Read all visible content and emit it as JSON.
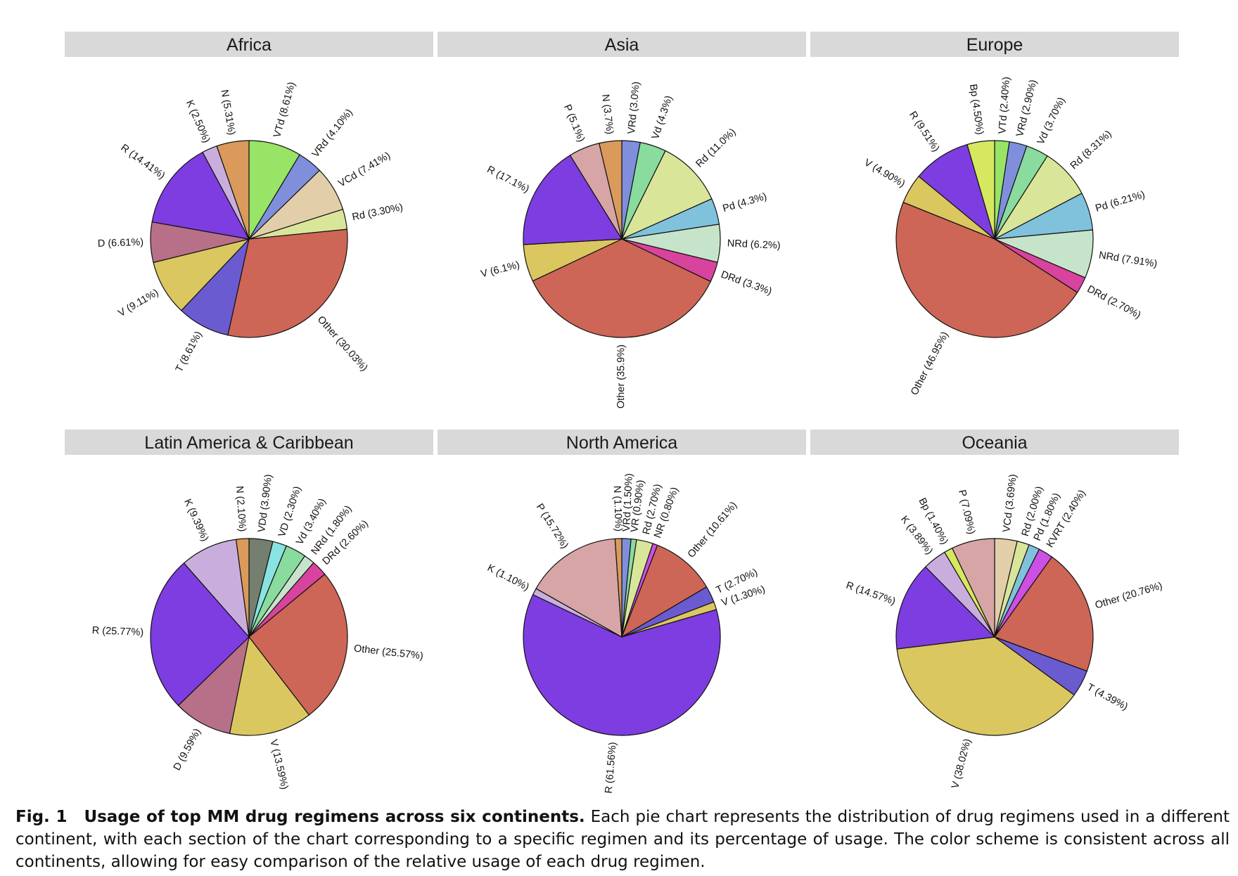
{
  "colors": {
    "A": "#cd6656",
    "B": "#7e3de0",
    "C": "#dac760",
    "D": "#6b5bd1",
    "E": "#b87088",
    "F": "#d7a5a6",
    "G": "#c9aedd",
    "H": "#d99a5c",
    "I": "#98e466",
    "J": "#7f8fdc",
    "K": "#e2cfaa",
    "L": "#d9e69a",
    "M": "#8adb9e",
    "N": "#80c2dc",
    "O": "#c6e4c9",
    "P": "#d8439e",
    "Q": "#d6e860",
    "R": "#747f6f",
    "S": "#88e4e0",
    "T": "#cd4fe4",
    "strip": "#d9d9d9",
    "outline": "#111111"
  },
  "chart_data": [
    {
      "type": "pie",
      "title": "Africa",
      "slices": [
        {
          "label": "VTd (8.61%)",
          "value": 8.61,
          "color": "I"
        },
        {
          "label": "VRd (4.10%)",
          "value": 4.1,
          "color": "J"
        },
        {
          "label": "VCd (7.41%)",
          "value": 7.41,
          "color": "K"
        },
        {
          "label": "Rd (3.30%)",
          "value": 3.3,
          "color": "L"
        },
        {
          "label": "Other (30.03%)",
          "value": 30.03,
          "color": "A"
        },
        {
          "label": "T (8.61%)",
          "value": 8.61,
          "color": "D"
        },
        {
          "label": "V (9.11%)",
          "value": 9.11,
          "color": "C"
        },
        {
          "label": "D (6.61%)",
          "value": 6.61,
          "color": "E"
        },
        {
          "label": "R (14.41%)",
          "value": 14.41,
          "color": "B"
        },
        {
          "label": "K (2.50%)",
          "value": 2.5,
          "color": "G"
        },
        {
          "label": "N (5.31%)",
          "value": 5.31,
          "color": "H"
        }
      ]
    },
    {
      "type": "pie",
      "title": "Asia",
      "slices": [
        {
          "label": "VRd (3.0%)",
          "value": 3.0,
          "color": "J"
        },
        {
          "label": "Vd (4.3%)",
          "value": 4.3,
          "color": "M"
        },
        {
          "label": "Rd (11.0%)",
          "value": 11.0,
          "color": "L"
        },
        {
          "label": "Pd (4.3%)",
          "value": 4.3,
          "color": "N"
        },
        {
          "label": "NRd (6.2%)",
          "value": 6.2,
          "color": "O"
        },
        {
          "label": "DRd (3.3%)",
          "value": 3.3,
          "color": "P"
        },
        {
          "label": "Other (35.9%)",
          "value": 35.9,
          "color": "A"
        },
        {
          "label": "V (6.1%)",
          "value": 6.1,
          "color": "C"
        },
        {
          "label": "R (17.1%)",
          "value": 17.1,
          "color": "B"
        },
        {
          "label": "P (5.1%)",
          "value": 5.1,
          "color": "F"
        },
        {
          "label": "N (3.7%)",
          "value": 3.7,
          "color": "H"
        }
      ]
    },
    {
      "type": "pie",
      "title": "Europe",
      "slices": [
        {
          "label": "VTd (2.40%)",
          "value": 2.4,
          "color": "I"
        },
        {
          "label": "VRd (2.90%)",
          "value": 2.9,
          "color": "J"
        },
        {
          "label": "Vd (3.70%)",
          "value": 3.7,
          "color": "M"
        },
        {
          "label": "Rd (8.31%)",
          "value": 8.31,
          "color": "L"
        },
        {
          "label": "Pd (6.21%)",
          "value": 6.21,
          "color": "N"
        },
        {
          "label": "NRd (7.91%)",
          "value": 7.91,
          "color": "O"
        },
        {
          "label": "DRd (2.70%)",
          "value": 2.7,
          "color": "P"
        },
        {
          "label": "Other (46.95%)",
          "value": 46.95,
          "color": "A"
        },
        {
          "label": "V (4.90%)",
          "value": 4.9,
          "color": "C"
        },
        {
          "label": "R (9.51%)",
          "value": 9.51,
          "color": "B"
        },
        {
          "label": "Bp (4.50%)",
          "value": 4.5,
          "color": "Q"
        }
      ]
    },
    {
      "type": "pie",
      "title": "Latin America & Caribbean",
      "slices": [
        {
          "label": "VDd (3.90%)",
          "value": 3.9,
          "color": "R"
        },
        {
          "label": "VD (2.30%)",
          "value": 2.3,
          "color": "S"
        },
        {
          "label": "Vd (3.40%)",
          "value": 3.4,
          "color": "M"
        },
        {
          "label": "NRd (1.80%)",
          "value": 1.8,
          "color": "O"
        },
        {
          "label": "DRd (2.60%)",
          "value": 2.6,
          "color": "P"
        },
        {
          "label": "Other (25.57%)",
          "value": 25.57,
          "color": "A"
        },
        {
          "label": "V (13.59%)",
          "value": 13.59,
          "color": "C"
        },
        {
          "label": "D (9.59%)",
          "value": 9.59,
          "color": "E"
        },
        {
          "label": "R (25.77%)",
          "value": 25.77,
          "color": "B"
        },
        {
          "label": "K (9.39%)",
          "value": 9.39,
          "color": "G"
        },
        {
          "label": "N (2.10%)",
          "value": 2.1,
          "color": "H"
        }
      ]
    },
    {
      "type": "pie",
      "title": "North America",
      "slices": [
        {
          "label": "VRd (1.50%)",
          "value": 1.5,
          "color": "J"
        },
        {
          "label": "VR (0.90%)",
          "value": 0.9,
          "color": "M"
        },
        {
          "label": "Rd (2.70%)",
          "value": 2.7,
          "color": "L"
        },
        {
          "label": "NR (0.80%)",
          "value": 0.8,
          "color": "T"
        },
        {
          "label": "Other (10.61%)",
          "value": 10.61,
          "color": "A"
        },
        {
          "label": "T (2.70%)",
          "value": 2.7,
          "color": "D"
        },
        {
          "label": "V (1.30%)",
          "value": 1.3,
          "color": "C"
        },
        {
          "label": "R (61.56%)",
          "value": 61.56,
          "color": "B"
        },
        {
          "label": "K (1.10%)",
          "value": 1.1,
          "color": "G"
        },
        {
          "label": "P (15.72%)",
          "value": 15.72,
          "color": "F"
        },
        {
          "label": "N (1.10%)",
          "value": 1.1,
          "color": "H"
        }
      ]
    },
    {
      "type": "pie",
      "title": "Oceania",
      "slices": [
        {
          "label": "VCd (3.69%)",
          "value": 3.69,
          "color": "K"
        },
        {
          "label": "Rd (2.00%)",
          "value": 2.0,
          "color": "L"
        },
        {
          "label": "Pd (1.80%)",
          "value": 1.8,
          "color": "N"
        },
        {
          "label": "KVRT (2.40%)",
          "value": 2.4,
          "color": "T"
        },
        {
          "label": "Other (20.76%)",
          "value": 20.76,
          "color": "A"
        },
        {
          "label": "T (4.39%)",
          "value": 4.39,
          "color": "D"
        },
        {
          "label": "V (38.02%)",
          "value": 38.02,
          "color": "C"
        },
        {
          "label": "R (14.57%)",
          "value": 14.57,
          "color": "B"
        },
        {
          "label": "K (3.89%)",
          "value": 3.89,
          "color": "G"
        },
        {
          "label": "Bp (1.40%)",
          "value": 1.4,
          "color": "Q"
        },
        {
          "label": "P (7.09%)",
          "value": 7.09,
          "color": "F"
        }
      ]
    }
  ],
  "caption": {
    "label": "Fig. 1",
    "title": "Usage of top MM drug regimens across six continents.",
    "text": "Each pie chart represents the distribution of drug regimens used in a different continent, with each section of the chart corresponding to a specific regimen and its percentage of usage. The color scheme is consistent across all continents, allowing for easy comparison of the relative usage of each drug regimen."
  }
}
